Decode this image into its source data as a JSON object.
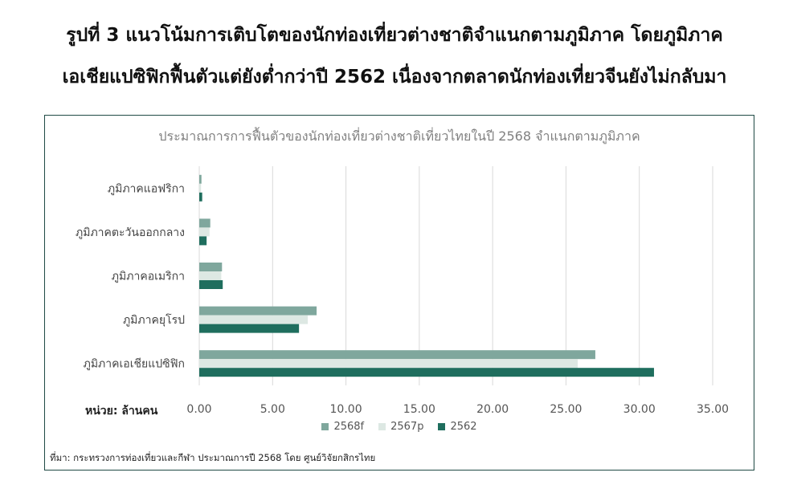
{
  "headline": {
    "line1": "รูปที่ 3 แนวโน้มการเติบโตของนักท่องเที่ยวต่างชาติจำแนกตามภูมิภาค โดยภูมิภาค",
    "line2": "เอเชียแปซิฟิกฟื้นตัวแต่ยังต่ำกว่าปี 2562 เนื่องจากตลาดนักท่องเที่ยวจีนยังไม่กลับมา"
  },
  "chart_data": {
    "type": "bar",
    "orientation": "horizontal",
    "title": "ประมาณการการฟื้นตัวของนักท่องเที่ยวต่างชาติเที่ยวไทยในปี 2568 จำแนกตามภูมิภาค",
    "unit_label": "หน่วย: ล้านคน",
    "categories": [
      "ภูมิภาคแอฟริกา",
      "ภูมิภาคตะวันออกกลาง",
      "ภูมิภาคอเมริกา",
      "ภูมิภาคยุโรป",
      "ภูมิภาคเอเชียแปซิฟิก"
    ],
    "series": [
      {
        "name": "2568f",
        "color": "#7fa79d",
        "values": [
          0.15,
          0.75,
          1.55,
          8.0,
          27.0
        ]
      },
      {
        "name": "2567p",
        "color": "#dde8e3",
        "values": [
          0.12,
          0.7,
          1.5,
          7.4,
          25.8
        ]
      },
      {
        "name": "2562",
        "color": "#1f6e5e",
        "values": [
          0.2,
          0.5,
          1.6,
          6.8,
          31.0
        ]
      }
    ],
    "xlim": [
      0,
      35
    ],
    "xticks": [
      "0.00",
      "5.00",
      "10.00",
      "15.00",
      "20.00",
      "25.00",
      "30.00",
      "35.00"
    ],
    "grid": true,
    "legend_position": "bottom"
  },
  "source": "ที่มา: กระทรวงการท่องเที่ยวและกีฬา ประมาณการปี 2568 โดย ศูนย์วิจัยกสิกรไทย"
}
